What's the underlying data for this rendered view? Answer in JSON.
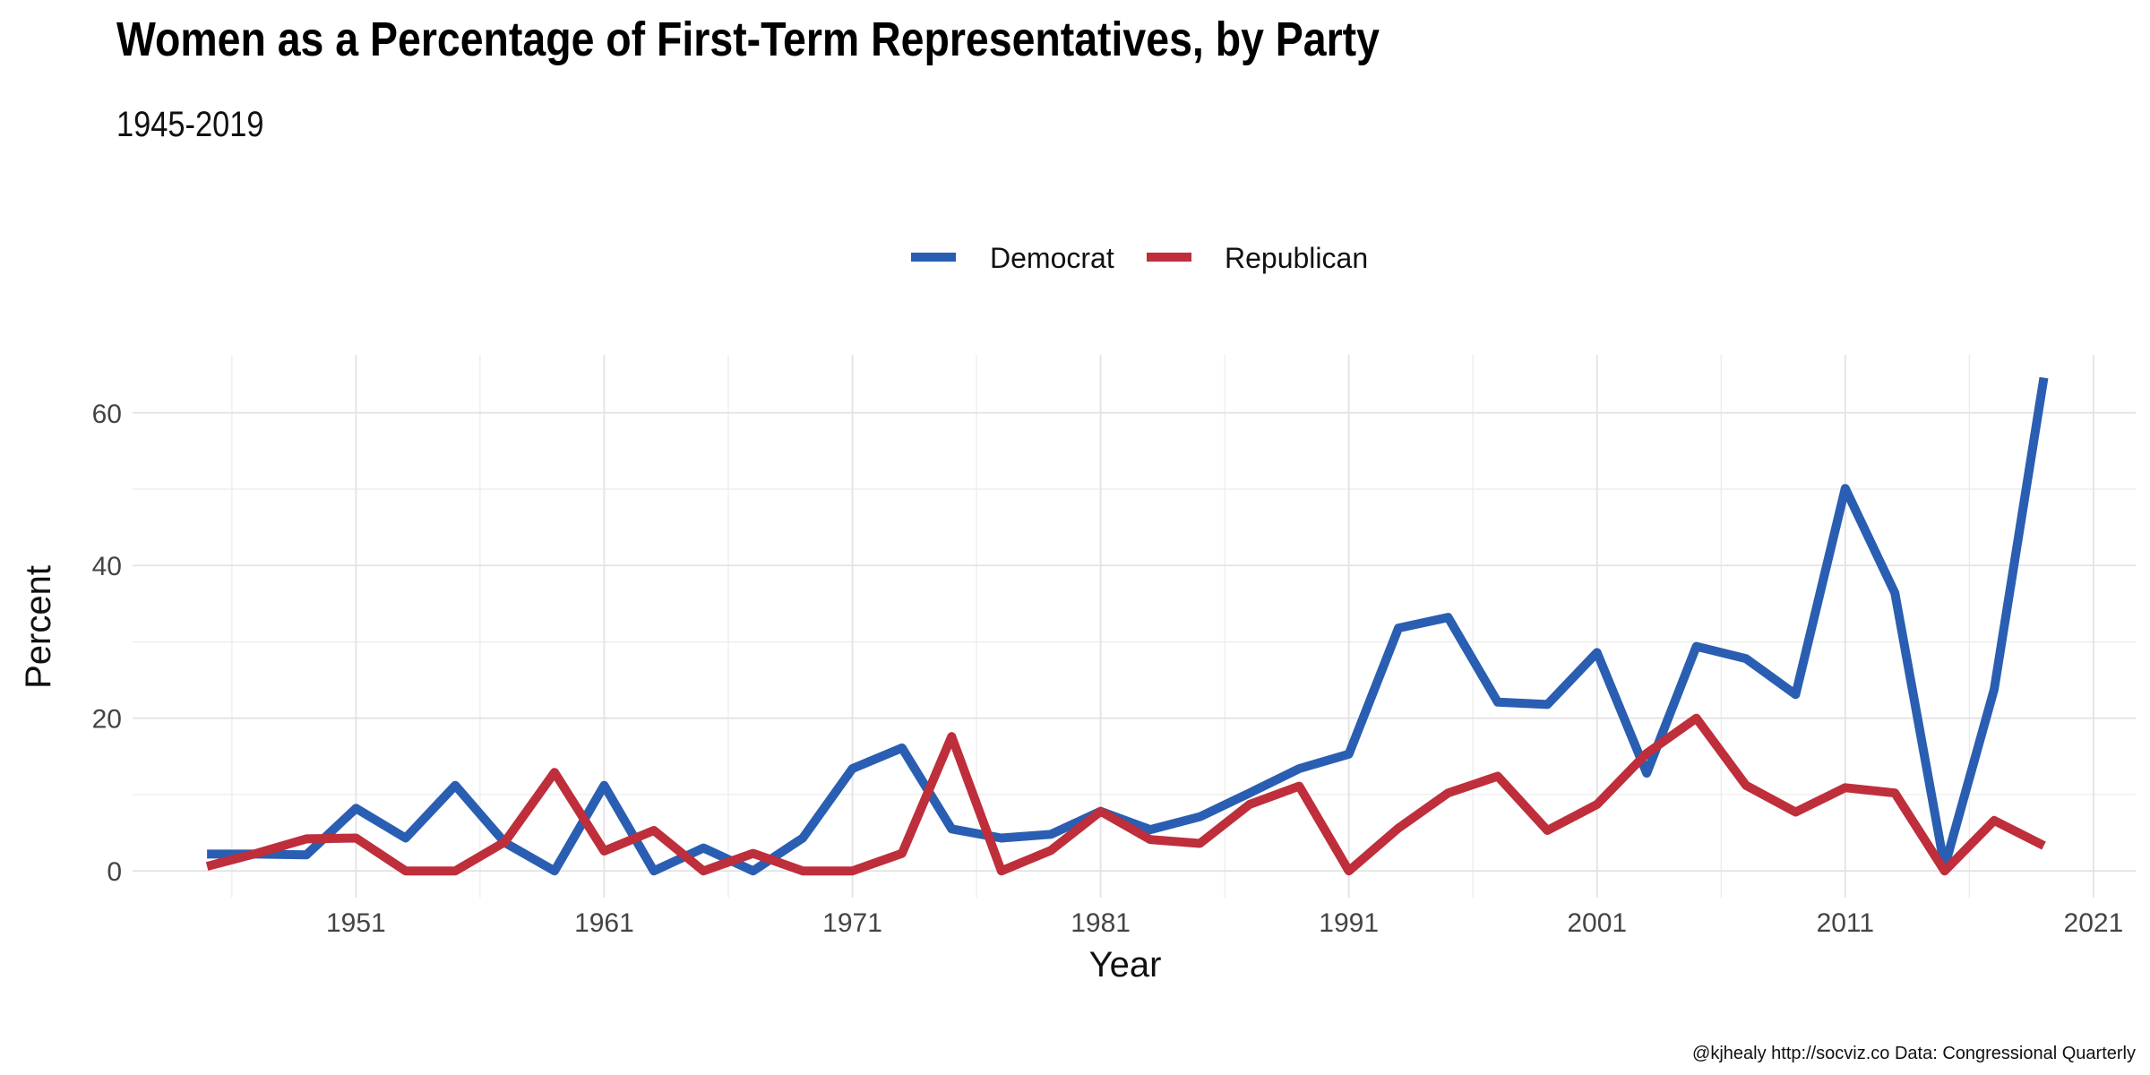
{
  "chart_data": {
    "type": "line",
    "title": "Women as a Percentage of First-Term Representatives, by Party",
    "subtitle": "1945-2019",
    "xlabel": "Year",
    "ylabel": "Percent",
    "caption": "@kjhealy http://socviz.co Data: Congressional Quarterly",
    "xlim": [
      1942,
      2022.7
    ],
    "ylim": [
      -3.5,
      67.6
    ],
    "x_ticks": [
      1951,
      1961,
      1971,
      1981,
      1991,
      2001,
      2011,
      2021
    ],
    "y_ticks": [
      0,
      20,
      40,
      60
    ],
    "grid": true,
    "legend_position": "top",
    "x": [
      1945,
      1947,
      1949,
      1951,
      1953,
      1955,
      1957,
      1959,
      1961,
      1963,
      1965,
      1967,
      1969,
      1971,
      1973,
      1975,
      1977,
      1979,
      1981,
      1983,
      1985,
      1987,
      1989,
      1991,
      1993,
      1995,
      1997,
      1999,
      2001,
      2003,
      2005,
      2007,
      2009,
      2011,
      2013,
      2015,
      2017,
      2019
    ],
    "series": [
      {
        "name": "Democrat",
        "color": "#2A5EB2",
        "values": [
          2.2,
          2.2,
          2.1,
          8.2,
          4.3,
          11.2,
          3.7,
          0,
          11.2,
          0,
          3.0,
          0,
          4.3,
          13.4,
          16.1,
          5.5,
          4.3,
          4.8,
          7.8,
          5.4,
          7.1,
          10.2,
          13.4,
          15.3,
          31.8,
          33.2,
          22.1,
          21.8,
          28.6,
          12.8,
          29.4,
          27.8,
          23.1,
          50.1,
          36.4,
          0.5,
          23.8,
          64.6
        ]
      },
      {
        "name": "Republican",
        "color": "#BE2E3B",
        "values": [
          0.6,
          2.3,
          4.2,
          4.3,
          0,
          0,
          3.8,
          12.9,
          2.6,
          5.3,
          0,
          2.3,
          0,
          0,
          2.3,
          17.6,
          0,
          2.7,
          7.8,
          4.1,
          3.6,
          8.7,
          11.1,
          0,
          5.6,
          10.2,
          12.4,
          5.3,
          8.7,
          15.4,
          20.0,
          11.2,
          7.7,
          10.9,
          10.2,
          0,
          6.6,
          3.3
        ]
      }
    ]
  }
}
